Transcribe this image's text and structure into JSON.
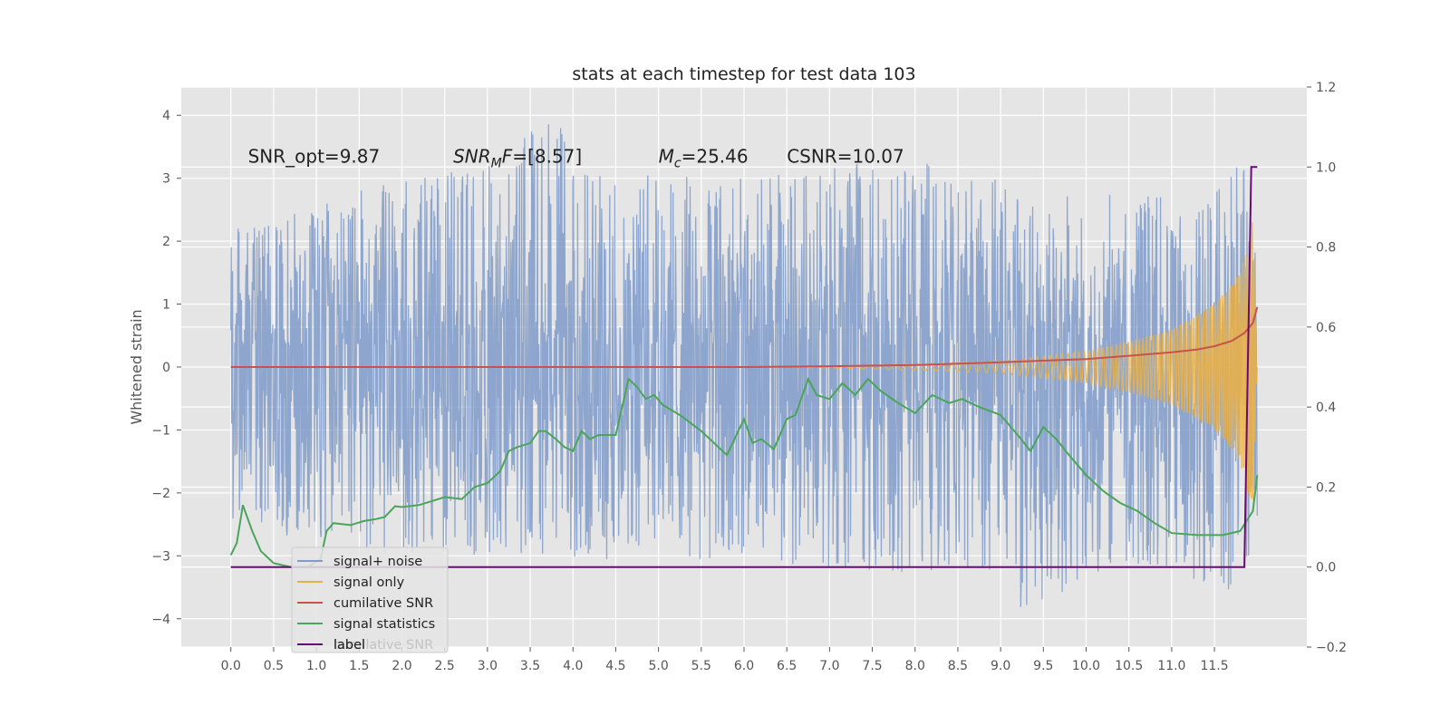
{
  "chart_data": {
    "type": "line",
    "title": "stats at each timestep for test data 103",
    "ylabel": "Whitened strain",
    "xlim": [
      -0.58,
      12.58
    ],
    "ylim": [
      -4.45,
      4.45
    ],
    "y2lim": [
      -0.2,
      1.2
    ],
    "x_ticks": [
      0.0,
      0.5,
      1.0,
      1.5,
      2.0,
      2.5,
      3.0,
      3.5,
      4.0,
      4.5,
      5.0,
      5.5,
      6.0,
      6.5,
      7.0,
      7.5,
      8.0,
      8.5,
      9.0,
      9.5,
      10.0,
      10.5,
      11.0,
      11.5
    ],
    "x_tick_labels": [
      "0.0",
      "0.5",
      "1.0",
      "1.5",
      "2.0",
      "2.5",
      "3.0",
      "3.5",
      "4.0",
      "4.5",
      "5.0",
      "5.5",
      "6.0",
      "6.5",
      "7.0",
      "7.5",
      "8.0",
      "8.5",
      "9.0",
      "9.5",
      "10.0",
      "10.5",
      "11.0",
      "11.5"
    ],
    "y_ticks": [
      -4,
      -3,
      -2,
      -1,
      0,
      1,
      2,
      3,
      4
    ],
    "y_tick_labels": [
      "−4",
      "−3",
      "−2",
      "−1",
      "0",
      "1",
      "2",
      "3",
      "4"
    ],
    "y2_ticks": [
      -0.2,
      0.0,
      0.2,
      0.4,
      0.6,
      0.8,
      1.0,
      1.2
    ],
    "y2_tick_labels": [
      "−0.2",
      "0.0",
      "0.2",
      "0.4",
      "0.6",
      "0.8",
      "1.0",
      "1.2"
    ],
    "grid": true,
    "legend_position": "lower-left",
    "annotations": [
      {
        "prefix": "SNR_opt=9.87",
        "sub": "",
        "suffix": "",
        "x": 0.2,
        "y": 3.25
      },
      {
        "prefix": "SNR",
        "sub": "M",
        "suffix": "F=[8.57]",
        "italic": true,
        "x": 2.6,
        "y": 3.25
      },
      {
        "prefix": "M",
        "sub": "c",
        "suffix": "=25.46",
        "italic": true,
        "x": 5.0,
        "y": 3.25
      },
      {
        "prefix": "CSNR=10.07",
        "sub": "",
        "suffix": "",
        "x": 6.5,
        "y": 3.25
      }
    ],
    "series": [
      {
        "name": "signal+ noise",
        "color": "#7f9bc9",
        "axis": "left",
        "kind": "noise",
        "x_range": [
          0.0,
          12.0
        ],
        "envelope": [
          [
            0.0,
            2.2,
            -2.5
          ],
          [
            1.0,
            2.6,
            -2.8
          ],
          [
            2.0,
            3.0,
            -3.0
          ],
          [
            3.0,
            3.2,
            -3.0
          ],
          [
            3.8,
            4.1,
            -3.0
          ],
          [
            4.0,
            3.1,
            -3.1
          ],
          [
            6.0,
            3.0,
            -3.1
          ],
          [
            7.0,
            3.2,
            -3.2
          ],
          [
            8.0,
            3.3,
            -3.3
          ],
          [
            9.0,
            3.0,
            -3.3
          ],
          [
            9.25,
            2.6,
            -4.05
          ],
          [
            10.0,
            2.8,
            -3.3
          ],
          [
            11.0,
            2.7,
            -3.2
          ],
          [
            11.3,
            2.6,
            -3.6
          ],
          [
            11.85,
            3.4,
            -3.6
          ],
          [
            12.0,
            2.2,
            -3.1
          ]
        ]
      },
      {
        "name": "signal only",
        "color": "#e8b04a",
        "axis": "left",
        "kind": "chirp",
        "x_range": [
          6.5,
          12.0
        ],
        "amplitude": [
          [
            6.5,
            0.0
          ],
          [
            8.0,
            0.05
          ],
          [
            9.0,
            0.1
          ],
          [
            10.0,
            0.25
          ],
          [
            10.5,
            0.4
          ],
          [
            11.0,
            0.6
          ],
          [
            11.5,
            1.0
          ],
          [
            11.8,
            1.5
          ],
          [
            11.95,
            2.35
          ],
          [
            12.0,
            0.0
          ]
        ]
      },
      {
        "name": "cumilative SNR",
        "color": "#c8524c",
        "axis": "right",
        "kind": "line",
        "points": [
          [
            0.0,
            0.5
          ],
          [
            6.0,
            0.5
          ],
          [
            7.0,
            0.502
          ],
          [
            8.0,
            0.505
          ],
          [
            9.0,
            0.512
          ],
          [
            10.0,
            0.52
          ],
          [
            10.5,
            0.528
          ],
          [
            11.0,
            0.537
          ],
          [
            11.3,
            0.544
          ],
          [
            11.5,
            0.552
          ],
          [
            11.7,
            0.565
          ],
          [
            11.85,
            0.585
          ],
          [
            11.95,
            0.61
          ],
          [
            12.0,
            0.65
          ]
        ]
      },
      {
        "name": "signal statistics",
        "color": "#4aa55a",
        "axis": "right",
        "kind": "line",
        "points": [
          [
            0.0,
            0.03
          ],
          [
            0.07,
            0.06
          ],
          [
            0.14,
            0.155
          ],
          [
            0.25,
            0.09
          ],
          [
            0.35,
            0.04
          ],
          [
            0.5,
            0.01
          ],
          [
            0.7,
            0.0
          ],
          [
            0.9,
            0.0
          ],
          [
            1.05,
            0.02
          ],
          [
            1.12,
            0.09
          ],
          [
            1.2,
            0.11
          ],
          [
            1.4,
            0.105
          ],
          [
            1.55,
            0.115
          ],
          [
            1.7,
            0.12
          ],
          [
            1.8,
            0.125
          ],
          [
            1.92,
            0.152
          ],
          [
            2.0,
            0.15
          ],
          [
            2.2,
            0.155
          ],
          [
            2.35,
            0.165
          ],
          [
            2.5,
            0.175
          ],
          [
            2.7,
            0.17
          ],
          [
            2.85,
            0.2
          ],
          [
            3.0,
            0.21
          ],
          [
            3.15,
            0.24
          ],
          [
            3.25,
            0.29
          ],
          [
            3.35,
            0.3
          ],
          [
            3.5,
            0.31
          ],
          [
            3.6,
            0.34
          ],
          [
            3.68,
            0.34
          ],
          [
            3.8,
            0.32
          ],
          [
            3.9,
            0.3
          ],
          [
            4.0,
            0.29
          ],
          [
            4.1,
            0.34
          ],
          [
            4.2,
            0.32
          ],
          [
            4.3,
            0.33
          ],
          [
            4.5,
            0.33
          ],
          [
            4.65,
            0.47
          ],
          [
            4.75,
            0.45
          ],
          [
            4.85,
            0.42
          ],
          [
            4.95,
            0.43
          ],
          [
            5.05,
            0.405
          ],
          [
            5.25,
            0.38
          ],
          [
            5.5,
            0.34
          ],
          [
            5.8,
            0.28
          ],
          [
            6.0,
            0.37
          ],
          [
            6.1,
            0.31
          ],
          [
            6.2,
            0.32
          ],
          [
            6.35,
            0.295
          ],
          [
            6.5,
            0.37
          ],
          [
            6.6,
            0.38
          ],
          [
            6.75,
            0.47
          ],
          [
            6.85,
            0.43
          ],
          [
            7.0,
            0.42
          ],
          [
            7.15,
            0.46
          ],
          [
            7.3,
            0.43
          ],
          [
            7.45,
            0.47
          ],
          [
            7.6,
            0.44
          ],
          [
            7.8,
            0.41
          ],
          [
            8.0,
            0.385
          ],
          [
            8.2,
            0.43
          ],
          [
            8.4,
            0.41
          ],
          [
            8.55,
            0.42
          ],
          [
            8.75,
            0.4
          ],
          [
            9.0,
            0.38
          ],
          [
            9.2,
            0.33
          ],
          [
            9.35,
            0.29
          ],
          [
            9.5,
            0.35
          ],
          [
            9.65,
            0.32
          ],
          [
            9.8,
            0.28
          ],
          [
            10.0,
            0.23
          ],
          [
            10.2,
            0.19
          ],
          [
            10.4,
            0.16
          ],
          [
            10.6,
            0.14
          ],
          [
            10.8,
            0.11
          ],
          [
            11.0,
            0.085
          ],
          [
            11.3,
            0.08
          ],
          [
            11.6,
            0.08
          ],
          [
            11.8,
            0.09
          ],
          [
            11.95,
            0.14
          ],
          [
            12.0,
            0.23
          ]
        ]
      },
      {
        "name": "label",
        "color": "#6a0a7a",
        "axis": "right",
        "kind": "line",
        "points": [
          [
            0.0,
            0.0
          ],
          [
            11.85,
            0.0
          ],
          [
            11.93,
            1.0
          ],
          [
            12.0,
            1.0
          ]
        ]
      }
    ],
    "legend_overlay_text": "cumilative SNR"
  }
}
